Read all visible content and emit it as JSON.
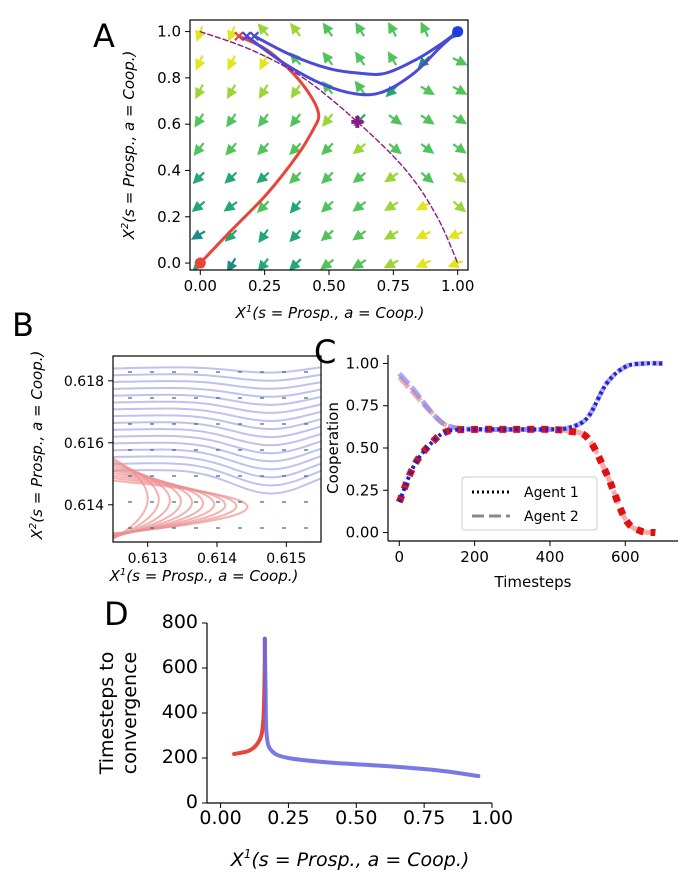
{
  "chart_data": [
    {
      "panel": "A",
      "type": "scatter",
      "title": "",
      "xlabel": "X¹(s = Prosp., a = Coop.)",
      "ylabel": "X²(s = Prosp., a = Coop.)",
      "xlim": [
        -0.04,
        1.04
      ],
      "ylim": [
        -0.03,
        1.05
      ],
      "xticks": [
        "0.00",
        "0.25",
        "0.50",
        "0.75",
        "1.00"
      ],
      "yticks": [
        "0.0",
        "0.2",
        "0.4",
        "0.6",
        "0.8",
        "1.0"
      ],
      "fixed_points": [
        {
          "name": "defect-defect",
          "x": 0.0,
          "y": 0.0,
          "color": "#e8443a"
        },
        {
          "name": "coop-coop",
          "x": 1.0,
          "y": 1.0,
          "color": "#1f3fd8"
        },
        {
          "name": "saddle",
          "x": 0.61,
          "y": 0.61,
          "color": "#8a1a8a"
        }
      ],
      "series": [
        {
          "name": "red trajectory",
          "color": "#e8443a",
          "x": [
            0.0,
            0.12,
            0.26,
            0.38,
            0.44,
            0.46,
            0.43,
            0.36,
            0.26,
            0.15
          ],
          "y": [
            0.0,
            0.14,
            0.3,
            0.47,
            0.58,
            0.64,
            0.72,
            0.82,
            0.92,
            0.98
          ]
        },
        {
          "name": "blue trajectory 1",
          "color": "#4a4ad8",
          "x": [
            0.21,
            0.35,
            0.5,
            0.62,
            0.72,
            0.84,
            0.94,
            1.0
          ],
          "y": [
            0.98,
            0.9,
            0.84,
            0.82,
            0.82,
            0.88,
            0.95,
            1.0
          ]
        },
        {
          "name": "blue trajectory 2",
          "color": "#4a4ad8",
          "x": [
            0.18,
            0.33,
            0.48,
            0.61,
            0.71,
            0.83,
            0.93,
            1.0
          ],
          "y": [
            0.98,
            0.86,
            0.77,
            0.73,
            0.74,
            0.82,
            0.93,
            1.0
          ]
        },
        {
          "name": "separatrix",
          "color": "#8a1a8a",
          "x": [
            0.0,
            0.2,
            0.4,
            0.61,
            0.8,
            0.92,
            1.0
          ],
          "y": [
            1.0,
            0.92,
            0.8,
            0.61,
            0.4,
            0.2,
            0.0
          ]
        }
      ]
    },
    {
      "panel": "B",
      "type": "line",
      "xlabel": "X¹(s = Prosp., a = Coop.)",
      "ylabel": "X²(s = Prosp., a = Coop.)",
      "xlim": [
        0.6125,
        0.6155
      ],
      "ylim": [
        0.6128,
        0.6188
      ],
      "xticks": [
        "0.613",
        "0.614",
        "0.615"
      ],
      "yticks": [
        "0.614",
        "0.616",
        "0.618"
      ]
    },
    {
      "panel": "C",
      "type": "line",
      "xlabel": "Timesteps",
      "ylabel": "Cooperation",
      "xlim": [
        -30,
        740
      ],
      "ylim": [
        -0.05,
        1.05
      ],
      "xticks": [
        "0",
        "200",
        "400",
        "600"
      ],
      "yticks": [
        "0.00",
        "0.25",
        "0.50",
        "0.75",
        "1.00"
      ],
      "legend": [
        "Agent 1",
        "Agent 2"
      ],
      "legend_position": "lower-right",
      "series": [
        {
          "name": "blue run agent 1",
          "color": "#2222cc",
          "x": [
            0,
            40,
            90,
            130,
            200,
            300,
            400,
            450,
            500,
            550,
            600,
            650,
            700
          ],
          "y": [
            0.18,
            0.4,
            0.54,
            0.6,
            0.61,
            0.61,
            0.61,
            0.62,
            0.68,
            0.88,
            0.98,
            1.0,
            1.0
          ]
        },
        {
          "name": "blue run agent 2",
          "color": "#8888ee",
          "x": [
            0,
            40,
            90,
            130,
            200,
            300,
            400,
            450,
            500,
            550,
            600,
            650,
            700
          ],
          "y": [
            0.94,
            0.84,
            0.7,
            0.63,
            0.61,
            0.61,
            0.61,
            0.62,
            0.68,
            0.88,
            0.98,
            1.0,
            1.0
          ]
        },
        {
          "name": "red run agent 1",
          "color": "#dd1111",
          "x": [
            0,
            40,
            90,
            130,
            200,
            300,
            400,
            450,
            500,
            550,
            600,
            640,
            680
          ],
          "y": [
            0.18,
            0.4,
            0.54,
            0.6,
            0.61,
            0.61,
            0.61,
            0.6,
            0.56,
            0.35,
            0.08,
            0.01,
            0.0
          ]
        },
        {
          "name": "red run agent 2",
          "color": "#f08a8a",
          "x": [
            0,
            40,
            90,
            130,
            200,
            300,
            400,
            450,
            500,
            550,
            600,
            640,
            680
          ],
          "y": [
            0.92,
            0.82,
            0.7,
            0.63,
            0.61,
            0.61,
            0.61,
            0.6,
            0.56,
            0.35,
            0.08,
            0.01,
            0.0
          ]
        }
      ]
    },
    {
      "panel": "D",
      "type": "line",
      "xlabel": "X¹(s = Prosp., a = Coop.)",
      "ylabel": "Timesteps to convergence",
      "xlim": [
        -0.05,
        1.0
      ],
      "ylim": [
        0,
        800
      ],
      "xticks": [
        "0.00",
        "0.25",
        "0.50",
        "0.75",
        "1.00"
      ],
      "yticks": [
        "0",
        "200",
        "400",
        "600",
        "800"
      ],
      "series": [
        {
          "name": "red",
          "color": "#e8443a",
          "x": [
            0.05,
            0.1,
            0.13,
            0.15,
            0.158,
            0.162,
            0.163
          ],
          "y": [
            218,
            230,
            255,
            300,
            380,
            550,
            730
          ]
        },
        {
          "name": "blue",
          "color": "#6a6ae0",
          "x": [
            0.163,
            0.166,
            0.17,
            0.19,
            0.25,
            0.4,
            0.6,
            0.8,
            0.95
          ],
          "y": [
            730,
            500,
            300,
            230,
            200,
            180,
            165,
            145,
            120
          ]
        }
      ]
    }
  ],
  "labels": {
    "panel_a": "A",
    "panel_b": "B",
    "panel_c": "C",
    "panel_d": "D",
    "x1_prefix": "X",
    "x1_sup": "1",
    "x2_prefix": "X",
    "x2_sup": "2",
    "axis_suffix": "(s = Prosp., a = Coop.)",
    "c_xlabel": "Timesteps",
    "c_ylabel": "Cooperation",
    "d_ylabel_line1": "Timesteps to",
    "d_ylabel_line2": "convergence",
    "legend_agent1": "Agent 1",
    "legend_agent2": "Agent 2"
  }
}
